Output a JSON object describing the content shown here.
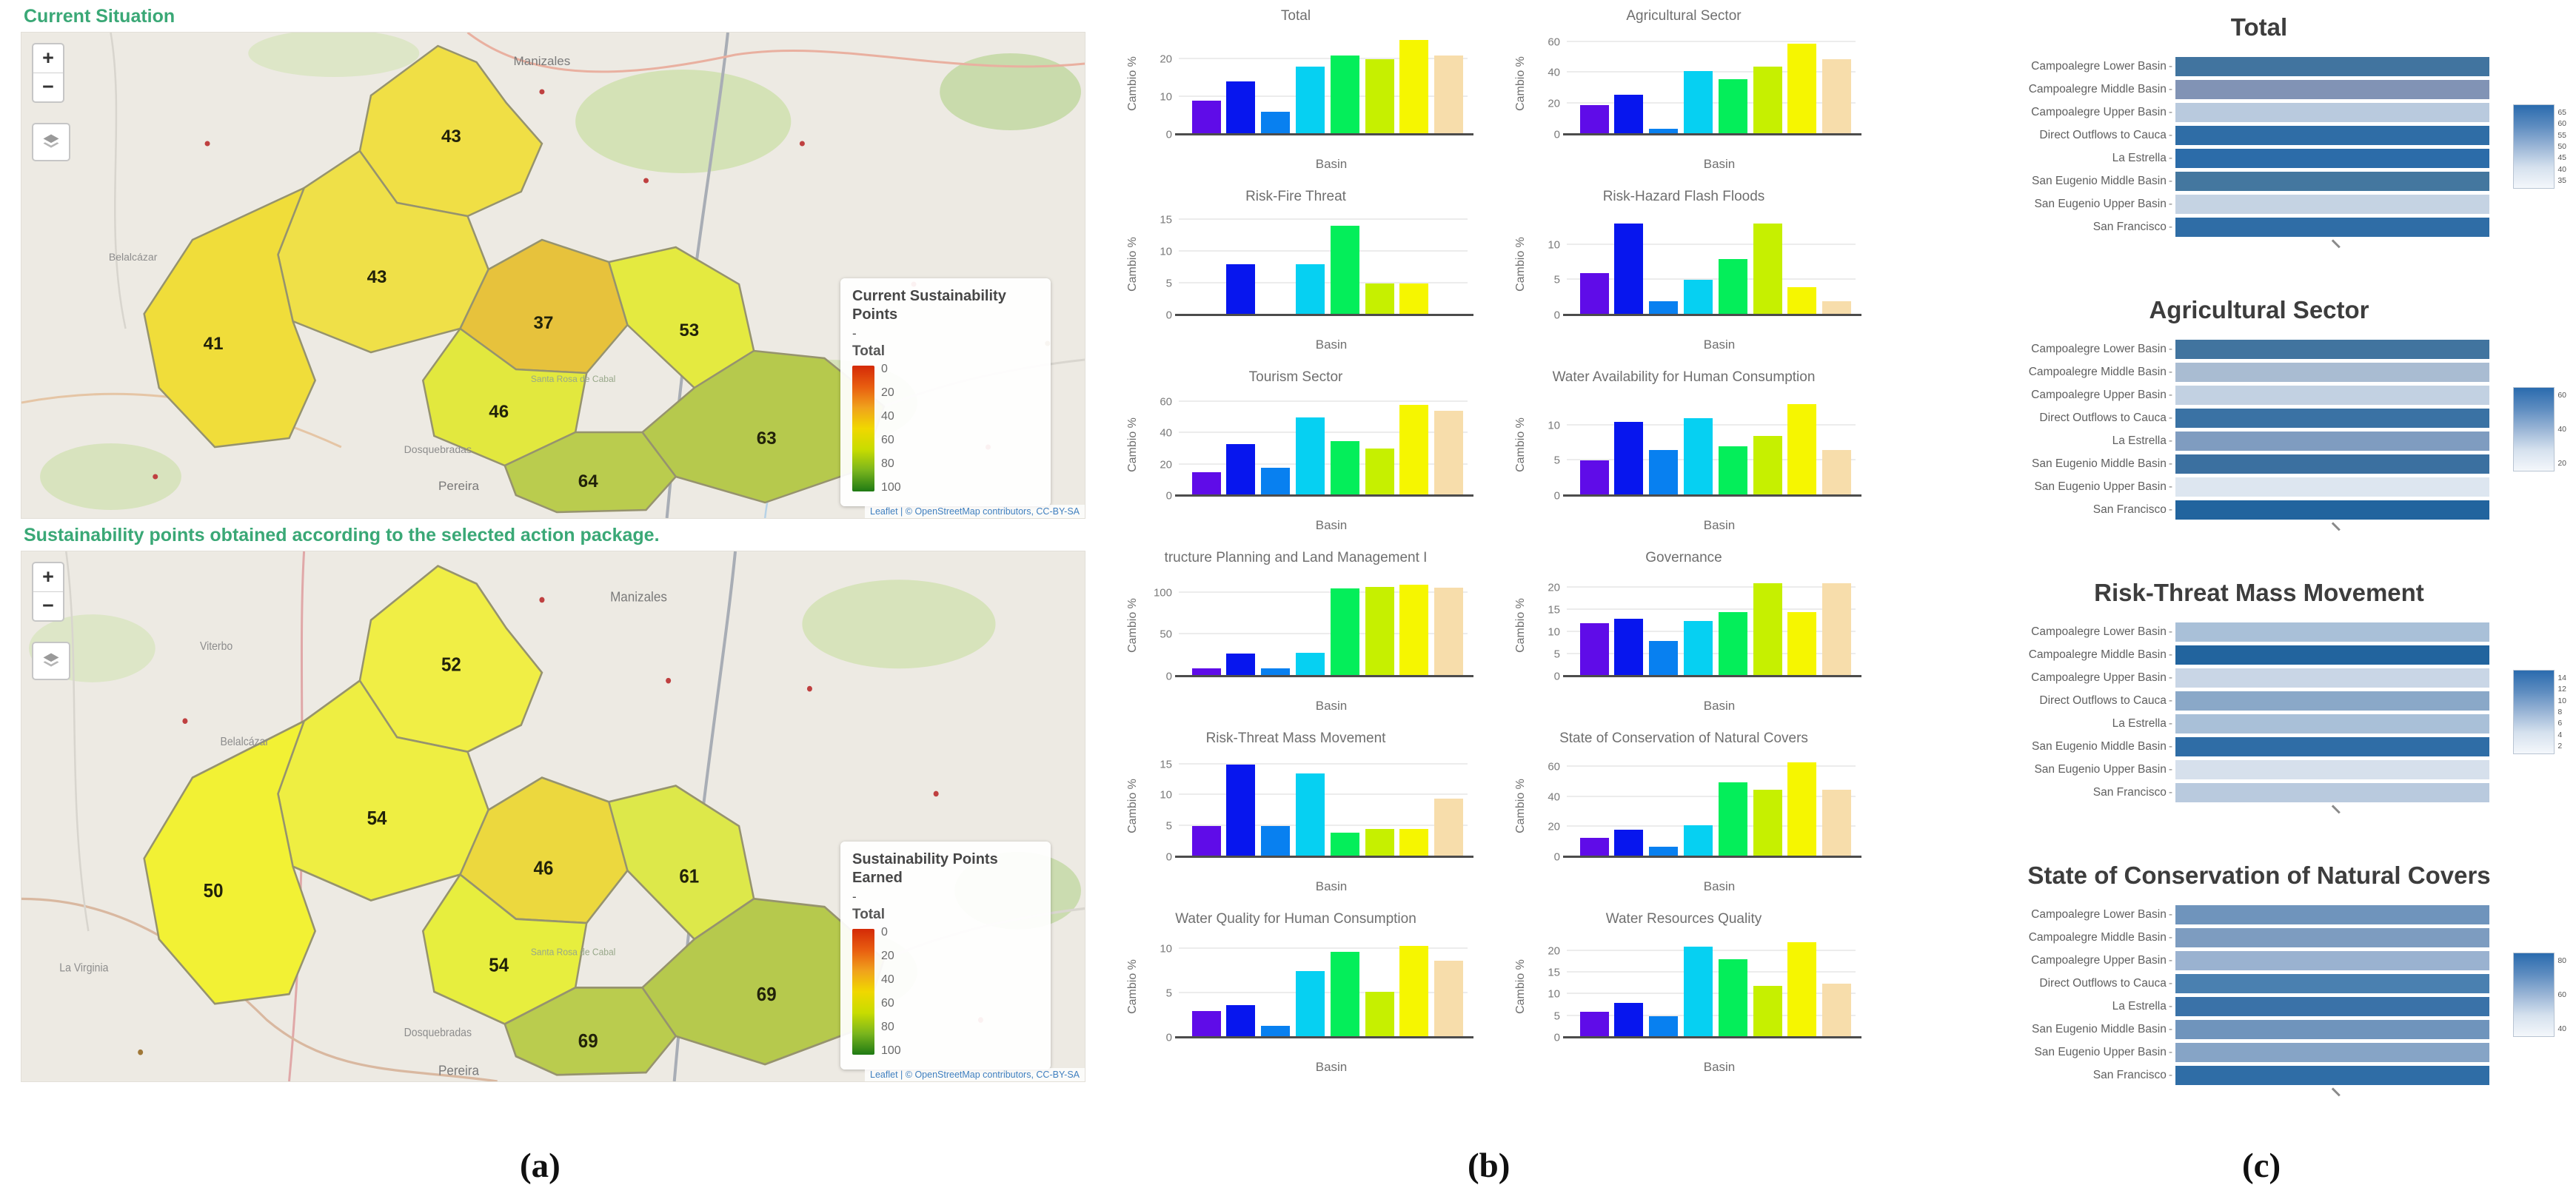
{
  "panel_a": {
    "controls": {
      "zoom_in": "+",
      "zoom_out": "−"
    },
    "maps": [
      {
        "title": "Current Situation",
        "legend": {
          "title": "Current Sustainability Points",
          "dash": "-",
          "scale_label": "Total",
          "ticks": [
            "0",
            "20",
            "40",
            "60",
            "80",
            "100"
          ]
        },
        "attribution": "Leaflet | © OpenStreetMap contributors, CC-BY-SA",
        "regions": [
          {
            "name": "north-subbasin",
            "value": "43",
            "fill": "#f0df45"
          },
          {
            "name": "mid-left-subbasin",
            "value": "43",
            "fill": "#efe048"
          },
          {
            "name": "west-subbasin",
            "value": "41",
            "fill": "#f0dd3a"
          },
          {
            "name": "center-subbasin",
            "value": "37",
            "fill": "#e7c23c"
          },
          {
            "name": "east-subbasin",
            "value": "53",
            "fill": "#e4ea40"
          },
          {
            "name": "south-center-subbasin",
            "value": "46",
            "fill": "#e2e83e"
          },
          {
            "name": "east-olive-subbasin",
            "value": "63",
            "fill": "#b6c94d"
          },
          {
            "name": "south-olive-subbasin",
            "value": "64",
            "fill": "#bacc4e"
          }
        ],
        "towns": {
          "manizales": "Manizales",
          "belalcazar": "Belalcázar",
          "santarosa": "Santa Rosa de Cabal",
          "dosquebradas": "Dosquebradas",
          "pereira": "Pereira"
        }
      },
      {
        "title": "Sustainability points obtained according to the selected action package.",
        "legend": {
          "title": "Sustainability Points Earned",
          "dash": "-",
          "scale_label": "Total",
          "ticks": [
            "0",
            "20",
            "40",
            "60",
            "80",
            "100"
          ]
        },
        "attribution": "Leaflet | © OpenStreetMap contributors, CC-BY-SA",
        "regions": [
          {
            "name": "north-subbasin",
            "value": "52",
            "fill": "#f0ee45"
          },
          {
            "name": "mid-left-subbasin",
            "value": "54",
            "fill": "#eeee42"
          },
          {
            "name": "west-subbasin",
            "value": "50",
            "fill": "#f2f134"
          },
          {
            "name": "center-subbasin",
            "value": "46",
            "fill": "#ecd83e"
          },
          {
            "name": "east-subbasin",
            "value": "61",
            "fill": "#dde84a"
          },
          {
            "name": "south-center-subbasin",
            "value": "54",
            "fill": "#e7ee3e"
          },
          {
            "name": "east-olive-subbasin",
            "value": "69",
            "fill": "#b6c94d"
          },
          {
            "name": "south-olive-subbasin",
            "value": "69",
            "fill": "#bacc4e"
          }
        ],
        "towns": {
          "viterbo": "Viterbo",
          "manizales": "Manizales",
          "belalcazar": "Belalcázar",
          "lavirginia": "La Virginia",
          "santarosa": "Santa Rosa de Cabal",
          "dosquebradas": "Dosquebradas",
          "pereira": "Pereira"
        }
      }
    ]
  },
  "panel_b": {
    "ylabel": "Cambio %",
    "xlabel": "Basin",
    "bar_colors": [
      "#5f0ce8",
      "#0716ee",
      "#0880f0",
      "#06d0f2",
      "#04ee5a",
      "#c6f000",
      "#f6f600",
      "#f7ddab"
    ]
  },
  "chart_data": {
    "categories": [
      "Campoalegre Lower Basin",
      "Campoalegre Middle Basin",
      "Campoalegre Upper Basin",
      "Direct Outflows to Cauca",
      "La Estrella",
      "San Eugenio Middle Basin",
      "San Eugenio Upper Basin",
      "San Francisco"
    ],
    "bar_charts": [
      {
        "type": "bar",
        "title": "Total",
        "ylabel": "Cambio %",
        "xlabel": "Basin",
        "yticks": [
          0,
          10,
          20
        ],
        "ymax": 27,
        "values": [
          9,
          14,
          6,
          18,
          21,
          20,
          25,
          21
        ]
      },
      {
        "type": "bar",
        "title": "Agricultural Sector",
        "ylabel": "Cambio %",
        "xlabel": "Basin",
        "yticks": [
          0,
          20,
          40,
          60
        ],
        "ymax": 66,
        "values": [
          19,
          26,
          4,
          41,
          36,
          44,
          59,
          49
        ]
      },
      {
        "type": "bar",
        "title": "Risk-Fire Threat",
        "ylabel": "Cambio %",
        "xlabel": "Basin",
        "yticks": [
          0,
          5,
          10,
          15
        ],
        "ymax": 16,
        "values": [
          0,
          8,
          0,
          8,
          14,
          5,
          5,
          0
        ]
      },
      {
        "type": "bar",
        "title": "Risk-Hazard Flash Floods",
        "ylabel": "Cambio %",
        "xlabel": "Basin",
        "yticks": [
          0,
          5,
          10
        ],
        "ymax": 14.5,
        "values": [
          6,
          13,
          2,
          5,
          8,
          13,
          4,
          2
        ]
      },
      {
        "type": "bar",
        "title": "Tourism Sector",
        "ylabel": "Cambio %",
        "xlabel": "Basin",
        "yticks": [
          0,
          20,
          40,
          60
        ],
        "ymax": 65,
        "values": [
          15,
          33,
          18,
          50,
          35,
          30,
          58,
          54
        ]
      },
      {
        "type": "bar",
        "title": "Water Availability for Human Consumption",
        "ylabel": "Cambio %",
        "xlabel": "Basin",
        "yticks": [
          0,
          5,
          10
        ],
        "ymax": 14.5,
        "values": [
          5,
          10.5,
          6.5,
          11,
          7,
          8.5,
          13,
          6.5
        ]
      },
      {
        "type": "bar",
        "title": "tructure Planning and Land Management I",
        "ylabel": "Cambio %",
        "xlabel": "Basin",
        "yticks": [
          0,
          50,
          100
        ],
        "ymax": 122,
        "values": [
          10,
          27,
          10,
          28,
          105,
          107,
          110,
          106
        ]
      },
      {
        "type": "bar",
        "title": "Governance",
        "ylabel": "Cambio %",
        "xlabel": "Basin",
        "yticks": [
          0,
          5,
          10,
          15,
          20
        ],
        "ymax": 23,
        "values": [
          12,
          13,
          8,
          12.5,
          14.5,
          21,
          14.5,
          21
        ]
      },
      {
        "type": "bar",
        "title": "Risk-Threat Mass Movement",
        "ylabel": "Cambio %",
        "xlabel": "Basin",
        "yticks": [
          0,
          5,
          10,
          15
        ],
        "ymax": 16.5,
        "values": [
          5,
          15,
          5,
          13.5,
          4,
          4.5,
          4.5,
          9.5
        ]
      },
      {
        "type": "bar",
        "title": "State of Conservation of Natural Covers",
        "ylabel": "Cambio %",
        "xlabel": "Basin",
        "yticks": [
          0,
          20,
          40,
          60
        ],
        "ymax": 68,
        "values": [
          13,
          18,
          7,
          21,
          50,
          45,
          63,
          45
        ]
      },
      {
        "type": "bar",
        "title": "Water Quality for Human Consumption",
        "ylabel": "Cambio %",
        "xlabel": "Basin",
        "yticks": [
          0,
          5,
          10
        ],
        "ymax": 11.5,
        "values": [
          3,
          3.7,
          1.3,
          7.5,
          9.7,
          5.2,
          10.3,
          8.7
        ]
      },
      {
        "type": "bar",
        "title": "Water Resources Quality",
        "ylabel": "Cambio %",
        "xlabel": "Basin",
        "yticks": [
          0,
          5,
          10,
          15,
          20
        ],
        "ymax": 23.5,
        "values": [
          6,
          8,
          5,
          21,
          18,
          12,
          22,
          12.5
        ]
      }
    ],
    "heatmaps": [
      {
        "type": "heatmap",
        "title": "Total",
        "colorbar_ticks": [
          "65",
          "60",
          "55",
          "50",
          "45",
          "40",
          "35"
        ],
        "row_colors": [
          "#41749f",
          "#8193b5",
          "#b9cade",
          "#2f6da6",
          "#2c6ca9",
          "#44779f",
          "#c5d3e3",
          "#2f6da6"
        ],
        "values": [
          52,
          45,
          39,
          56,
          57,
          51,
          38,
          56
        ]
      },
      {
        "type": "heatmap",
        "title": "Agricultural Sector",
        "colorbar_ticks": [
          "60",
          "40",
          "20"
        ],
        "row_colors": [
          "#41749f",
          "#a9bcd2",
          "#c2d1e2",
          "#3a72a4",
          "#7f9cc0",
          "#3b70a0",
          "#dde6f0",
          "#22649e"
        ],
        "values": [
          48,
          31,
          27,
          50,
          38,
          50,
          22,
          58
        ]
      },
      {
        "type": "heatmap",
        "title": "Risk-Threat Mass Movement",
        "colorbar_ticks": [
          "14",
          "12",
          "10",
          "8",
          "6",
          "4",
          "2"
        ],
        "row_colors": [
          "#a9c0d8",
          "#22649e",
          "#c9d6e6",
          "#8aa8c8",
          "#a9c0d8",
          "#2f6da6",
          "#d6e0ec",
          "#b9cade"
        ],
        "values": [
          6,
          14,
          4,
          8,
          6,
          13,
          3,
          5
        ]
      },
      {
        "type": "heatmap",
        "title": "State of Conservation of Natural Covers",
        "colorbar_ticks": [
          "80",
          "60",
          "40"
        ],
        "row_colors": [
          "#6f94bc",
          "#7d9cc0",
          "#9ab2d0",
          "#4a80b0",
          "#3a72a8",
          "#6f94bc",
          "#86a4c6",
          "#2f6da6"
        ],
        "values": [
          58,
          56,
          50,
          65,
          68,
          58,
          54,
          70
        ]
      }
    ]
  },
  "captions": {
    "a": "(a)",
    "b": "(b)",
    "c": "(c)"
  }
}
